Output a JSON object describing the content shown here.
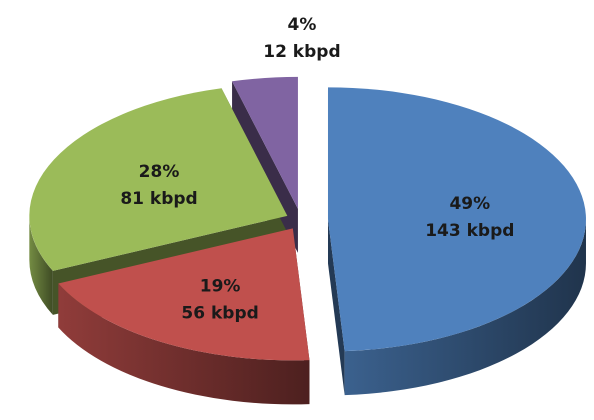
{
  "chart_data": {
    "type": "pie",
    "values": [
      143,
      56,
      81,
      12
    ],
    "value_labels": [
      "143 kbpd",
      "56 kbpd",
      "81 kbpd",
      "12 kbpd"
    ],
    "percents": [
      49,
      19,
      28,
      4
    ],
    "percent_labels": [
      "49%",
      "19%",
      "28%",
      "4%"
    ],
    "colors": [
      "#4f81bd",
      "#c0504d",
      "#9bbb59",
      "#8064a2"
    ]
  }
}
